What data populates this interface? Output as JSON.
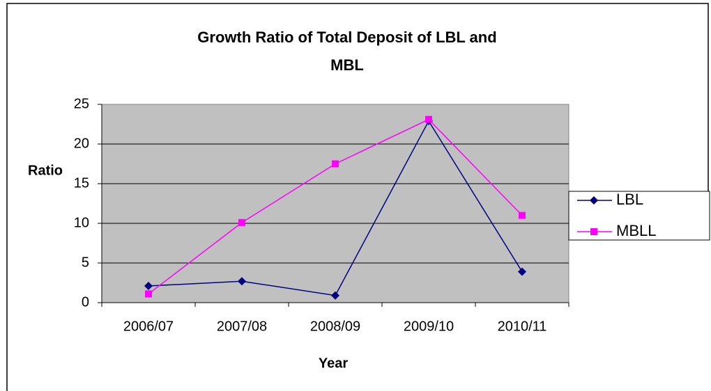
{
  "chart_data": {
    "type": "line",
    "title": [
      "Growth Ratio of Total Deposit of  LBL  and",
      "MBL"
    ],
    "x_label": "Year",
    "y_label": "Ratio",
    "categories": [
      "2006/07",
      "2007/08",
      "2008/09",
      "2009/10",
      "2010/11"
    ],
    "series": [
      {
        "name": "LBL",
        "color": "#000080",
        "marker": "diamond",
        "values": [
          2.1,
          2.7,
          0.9,
          22.9,
          3.9
        ]
      },
      {
        "name": "MBLL",
        "color": "#ff00ff",
        "marker": "square",
        "values": [
          1.1,
          10.1,
          17.5,
          23.1,
          11.0
        ]
      }
    ],
    "ylim": [
      0,
      25
    ],
    "yticks": [
      0,
      5,
      10,
      15,
      20,
      25
    ],
    "grid": true,
    "legend": "right"
  }
}
